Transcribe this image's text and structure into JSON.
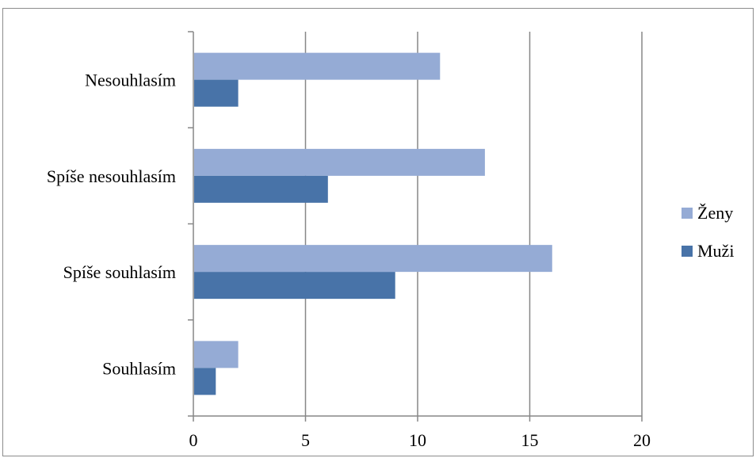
{
  "chart_data": {
    "type": "bar",
    "orientation": "horizontal",
    "categories": [
      "Souhlasím",
      "Spíše souhlasím",
      "Spíše nesouhlasím",
      "Nesouhlasím"
    ],
    "series": [
      {
        "name": "Ženy",
        "values": [
          2,
          16,
          13,
          11
        ],
        "color": "#95abd5"
      },
      {
        "name": "Muži",
        "values": [
          1,
          9,
          6,
          2
        ],
        "color": "#4873a8"
      }
    ],
    "xlim": [
      0,
      20
    ],
    "xticks": [
      0,
      5,
      10,
      15,
      20
    ],
    "xtick_labels": [
      "0",
      "5",
      "10",
      "15",
      "20"
    ],
    "grid": true,
    "legend_position": "right",
    "title": "",
    "xlabel": "",
    "ylabel": ""
  }
}
